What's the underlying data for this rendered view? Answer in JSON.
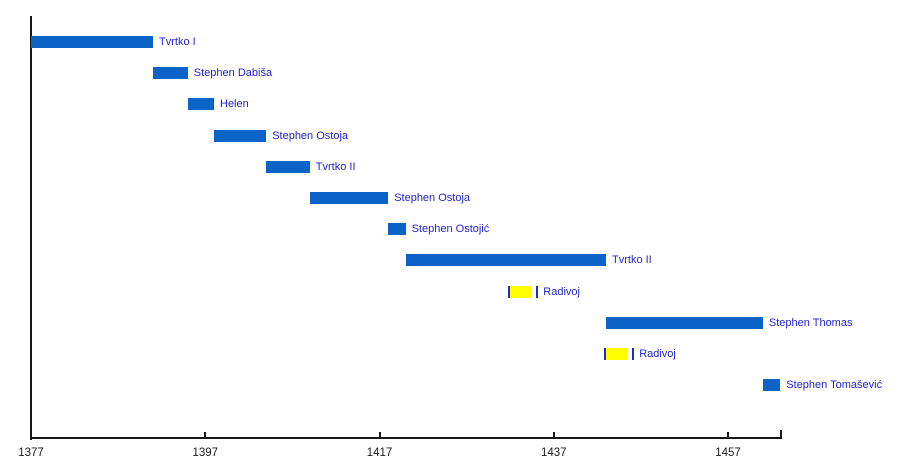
{
  "chart_data": {
    "type": "bar",
    "subtype": "gantt-timeline",
    "description": "Timeline of reigns of Bosnian monarchs",
    "xlabel": "",
    "ylabel": "",
    "axis": {
      "min_year": 1377,
      "max_year": 1463,
      "tick_years": [
        1377,
        1397,
        1417,
        1437,
        1457
      ],
      "tick_labels": [
        "1377",
        "1397",
        "1417",
        "1437",
        "1457"
      ],
      "grid": false,
      "legend": false
    },
    "rows": [
      {
        "label": "Tvrtko I",
        "start": 1377,
        "end": 1391,
        "color": "blue"
      },
      {
        "label": "Stephen Dabiša",
        "start": 1391,
        "end": 1395,
        "color": "blue"
      },
      {
        "label": "Helen",
        "start": 1395,
        "end": 1398,
        "color": "blue"
      },
      {
        "label": "Stephen Ostoja",
        "start": 1398,
        "end": 1404,
        "color": "blue"
      },
      {
        "label": "Tvrtko II",
        "start": 1404,
        "end": 1409,
        "color": "blue"
      },
      {
        "label": "Stephen Ostoja",
        "start": 1409,
        "end": 1418,
        "color": "blue"
      },
      {
        "label": "Stephen Ostojić",
        "start": 1418,
        "end": 1420,
        "color": "blue"
      },
      {
        "label": "Tvrtko II",
        "start": 1420,
        "end": 1443,
        "color": "blue"
      },
      {
        "label": "Radivoj",
        "start": 1432,
        "end": 1435,
        "color": "yellow"
      },
      {
        "label": "Stephen Thomas",
        "start": 1443,
        "end": 1461,
        "color": "blue"
      },
      {
        "label": "Radivoj",
        "start": 1443,
        "end": 1446,
        "color": "yellow"
      },
      {
        "label": "Stephen Tomašević",
        "start": 1461,
        "end": 1463,
        "color": "blue"
      }
    ],
    "colors": {
      "bar_blue": "#0b63c8",
      "bar_yellow": "#ffff00",
      "end_marker_blue": "#1e2fb4",
      "label_text": "#2323cc",
      "axis": "#161616"
    }
  }
}
